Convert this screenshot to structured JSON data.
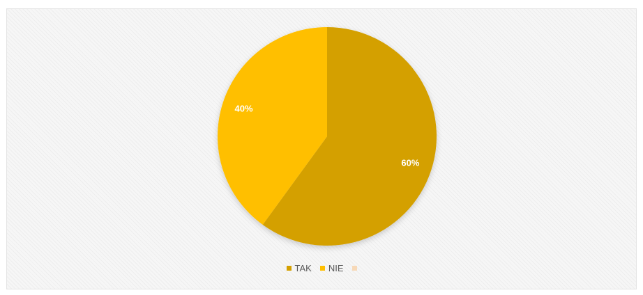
{
  "chart_data": {
    "type": "pie",
    "categories": [
      "TAK",
      "NIE",
      ""
    ],
    "values": [
      60,
      40,
      0
    ],
    "data_labels": [
      "60%",
      "40%",
      ""
    ],
    "legend_position": "bottom",
    "colors": [
      "#d4a000",
      "#ffbf00",
      "#f7d9b8"
    ]
  }
}
